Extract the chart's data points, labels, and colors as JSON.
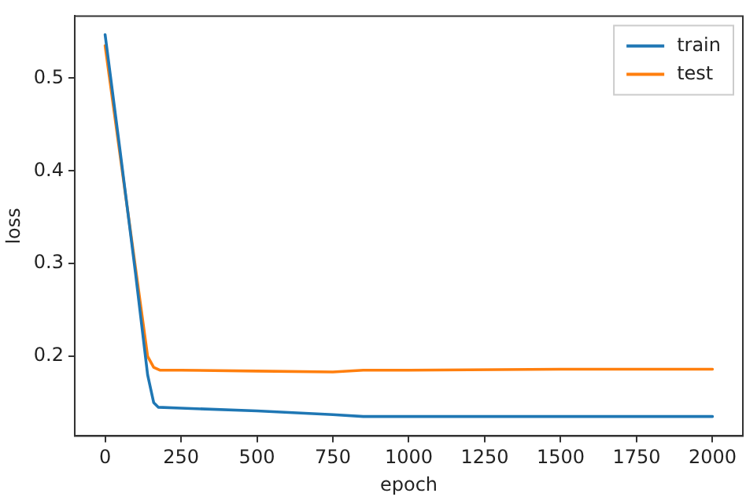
{
  "chart_data": {
    "type": "line",
    "xlabel": "epoch",
    "ylabel": "loss",
    "series": [
      {
        "name": "train",
        "color": "#1f77b4",
        "x": [
          0,
          50,
          100,
          140,
          160,
          175,
          250,
          500,
          750,
          850,
          1000,
          1500,
          2000
        ],
        "values": [
          0.547,
          0.42,
          0.29,
          0.18,
          0.15,
          0.145,
          0.144,
          0.141,
          0.137,
          0.135,
          0.135,
          0.135,
          0.135
        ]
      },
      {
        "name": "test",
        "color": "#ff7f0e",
        "x": [
          0,
          140,
          160,
          180,
          250,
          500,
          750,
          850,
          1000,
          1500,
          2000
        ],
        "values": [
          0.535,
          0.2,
          0.188,
          0.185,
          0.185,
          0.184,
          0.183,
          0.185,
          0.185,
          0.186,
          0.186
        ]
      }
    ],
    "xlim": [
      -100,
      2100
    ],
    "ylim": [
      0.114,
      0.567
    ],
    "xticks": [
      0,
      250,
      500,
      750,
      1000,
      1250,
      1500,
      1750,
      2000
    ],
    "yticks": [
      0.2,
      0.3,
      0.4,
      0.5
    ],
    "grid": false,
    "legend": "top right",
    "marker": "none",
    "line_style": "solid"
  }
}
